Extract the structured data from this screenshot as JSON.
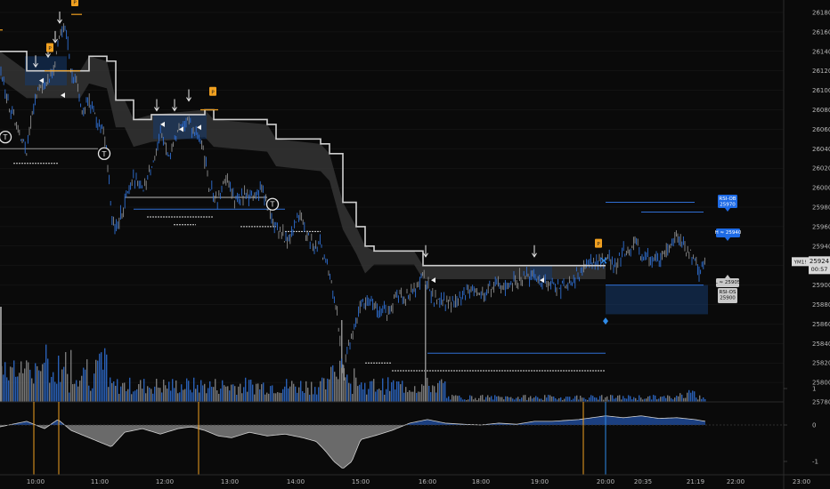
{
  "chart_data": {
    "type": "candlestick",
    "symbol": "YM1!",
    "last_price": "25924",
    "countdown": "00:57",
    "price_axis": {
      "ticks": [
        26180,
        26160,
        26140,
        26120,
        26100,
        26080,
        26060,
        26040,
        26020,
        26000,
        25980,
        25960,
        25940,
        25920,
        25900,
        25880,
        25860,
        25840,
        25820,
        25800,
        25780
      ],
      "range": [
        25780,
        26190
      ]
    },
    "time_axis": {
      "ticks": [
        "10:00",
        "11:00",
        "12:00",
        "13:00",
        "14:00",
        "15:00",
        "16:00",
        "18:00",
        "19:00",
        "20:00",
        "20:35",
        "21:19",
        "22:00",
        "23:00"
      ]
    },
    "oscillator_axis": {
      "ticks": [
        "1",
        "0",
        "-1"
      ],
      "range": [
        -1.3,
        1.3
      ]
    },
    "labels": {
      "rsi_ob": [
        "RSI-OB",
        "25970"
      ],
      "high": "H ≈ 25940",
      "low": "L ≈ 25905",
      "rsi_os": [
        "RSI-OS",
        "25900"
      ],
      "p_markers": [
        "P",
        "P",
        "P",
        "P"
      ],
      "t_markers": [
        "T",
        "T",
        "T"
      ]
    },
    "price_path": [
      [
        0,
        26120
      ],
      [
        10,
        26085
      ],
      [
        20,
        26060
      ],
      [
        30,
        26040
      ],
      [
        40,
        26095
      ],
      [
        50,
        26110
      ],
      [
        60,
        26120
      ],
      [
        68,
        26160
      ],
      [
        74,
        26165
      ],
      [
        80,
        26120
      ],
      [
        85,
        26110
      ],
      [
        92,
        26080
      ],
      [
        100,
        26090
      ],
      [
        108,
        26070
      ],
      [
        115,
        26060
      ],
      [
        120,
        26040
      ],
      [
        125,
        25975
      ],
      [
        130,
        25955
      ],
      [
        140,
        25985
      ],
      [
        150,
        26010
      ],
      [
        160,
        26000
      ],
      [
        170,
        26020
      ],
      [
        180,
        26055
      ],
      [
        190,
        26035
      ],
      [
        200,
        26060
      ],
      [
        210,
        26070
      ],
      [
        220,
        26055
      ],
      [
        228,
        26040
      ],
      [
        235,
        26000
      ],
      [
        245,
        25985
      ],
      [
        255,
        26010
      ],
      [
        265,
        25985
      ],
      [
        275,
        25995
      ],
      [
        285,
        25990
      ],
      [
        295,
        26000
      ],
      [
        305,
        25965
      ],
      [
        315,
        25955
      ],
      [
        325,
        25945
      ],
      [
        335,
        25975
      ],
      [
        345,
        25950
      ],
      [
        352,
        25940
      ],
      [
        358,
        25945
      ],
      [
        365,
        25925
      ],
      [
        372,
        25905
      ],
      [
        378,
        25875
      ],
      [
        383,
        25825
      ],
      [
        386,
        25808
      ],
      [
        390,
        25835
      ],
      [
        397,
        25855
      ],
      [
        405,
        25880
      ],
      [
        415,
        25885
      ],
      [
        425,
        25875
      ],
      [
        435,
        25870
      ],
      [
        445,
        25890
      ],
      [
        455,
        25885
      ],
      [
        465,
        25895
      ],
      [
        475,
        25912
      ],
      [
        482,
        25895
      ],
      [
        490,
        25885
      ],
      [
        500,
        25880
      ],
      [
        510,
        25885
      ],
      [
        520,
        25890
      ],
      [
        530,
        25895
      ],
      [
        540,
        25890
      ],
      [
        550,
        25897
      ],
      [
        560,
        25900
      ],
      [
        570,
        25895
      ],
      [
        580,
        25904
      ],
      [
        590,
        25907
      ],
      [
        600,
        25910
      ],
      [
        610,
        25905
      ],
      [
        620,
        25900
      ],
      [
        630,
        25895
      ],
      [
        640,
        25904
      ],
      [
        650,
        25910
      ],
      [
        660,
        25924
      ],
      [
        670,
        25922
      ],
      [
        680,
        25928
      ],
      [
        690,
        25920
      ],
      [
        700,
        25935
      ],
      [
        710,
        25940
      ],
      [
        715,
        25945
      ],
      [
        720,
        25930
      ],
      [
        730,
        25925
      ],
      [
        740,
        25930
      ],
      [
        750,
        25935
      ],
      [
        760,
        25950
      ],
      [
        770,
        25940
      ],
      [
        780,
        25925
      ],
      [
        785,
        25915
      ],
      [
        790,
        25924
      ]
    ],
    "stop_line": [
      [
        0,
        26140
      ],
      [
        30,
        26120
      ],
      [
        90,
        26120
      ],
      [
        100,
        26135
      ],
      [
        120,
        26130
      ],
      [
        130,
        26090
      ],
      [
        140,
        26090
      ],
      [
        150,
        26070
      ],
      [
        170,
        26075
      ],
      [
        230,
        26080
      ],
      [
        240,
        26070
      ],
      [
        300,
        26065
      ],
      [
        310,
        26050
      ],
      [
        360,
        26045
      ],
      [
        370,
        26035
      ],
      [
        385,
        25985
      ],
      [
        400,
        25960
      ],
      [
        410,
        25940
      ],
      [
        420,
        25935
      ],
      [
        465,
        25935
      ],
      [
        475,
        25920
      ],
      [
        560,
        25920
      ],
      [
        680,
        25920
      ]
    ],
    "oscillator": [
      [
        0,
        -0.05
      ],
      [
        30,
        0.1
      ],
      [
        50,
        -0.1
      ],
      [
        65,
        0.15
      ],
      [
        80,
        -0.15
      ],
      [
        95,
        -0.3
      ],
      [
        110,
        -0.45
      ],
      [
        125,
        -0.6
      ],
      [
        140,
        -0.2
      ],
      [
        160,
        -0.1
      ],
      [
        180,
        -0.25
      ],
      [
        200,
        -0.1
      ],
      [
        215,
        -0.05
      ],
      [
        230,
        -0.15
      ],
      [
        245,
        -0.3
      ],
      [
        260,
        -0.35
      ],
      [
        280,
        -0.2
      ],
      [
        300,
        -0.3
      ],
      [
        320,
        -0.25
      ],
      [
        340,
        -0.35
      ],
      [
        355,
        -0.45
      ],
      [
        365,
        -0.7
      ],
      [
        375,
        -1.0
      ],
      [
        385,
        -1.2
      ],
      [
        395,
        -1.0
      ],
      [
        405,
        -0.4
      ],
      [
        420,
        -0.3
      ],
      [
        440,
        -0.15
      ],
      [
        460,
        0.05
      ],
      [
        480,
        0.15
      ],
      [
        500,
        0.05
      ],
      [
        520,
        0.02
      ],
      [
        540,
        0.0
      ],
      [
        560,
        0.05
      ],
      [
        580,
        0.02
      ],
      [
        600,
        0.1
      ],
      [
        620,
        0.1
      ],
      [
        650,
        0.15
      ],
      [
        680,
        0.25
      ],
      [
        700,
        0.2
      ],
      [
        720,
        0.25
      ],
      [
        740,
        0.18
      ],
      [
        760,
        0.2
      ],
      [
        780,
        0.15
      ],
      [
        792,
        0.1
      ]
    ]
  },
  "colors": {
    "background": "#0a0a0a",
    "bull": "#2f6fd4",
    "bear": "#8c8c8c",
    "stop_line": "#cfcfcf",
    "cloud": "#3a3a3a",
    "accent_orange": "#f0a020",
    "label_blue": "#1e6be6",
    "grid": "#1c1c1c"
  }
}
